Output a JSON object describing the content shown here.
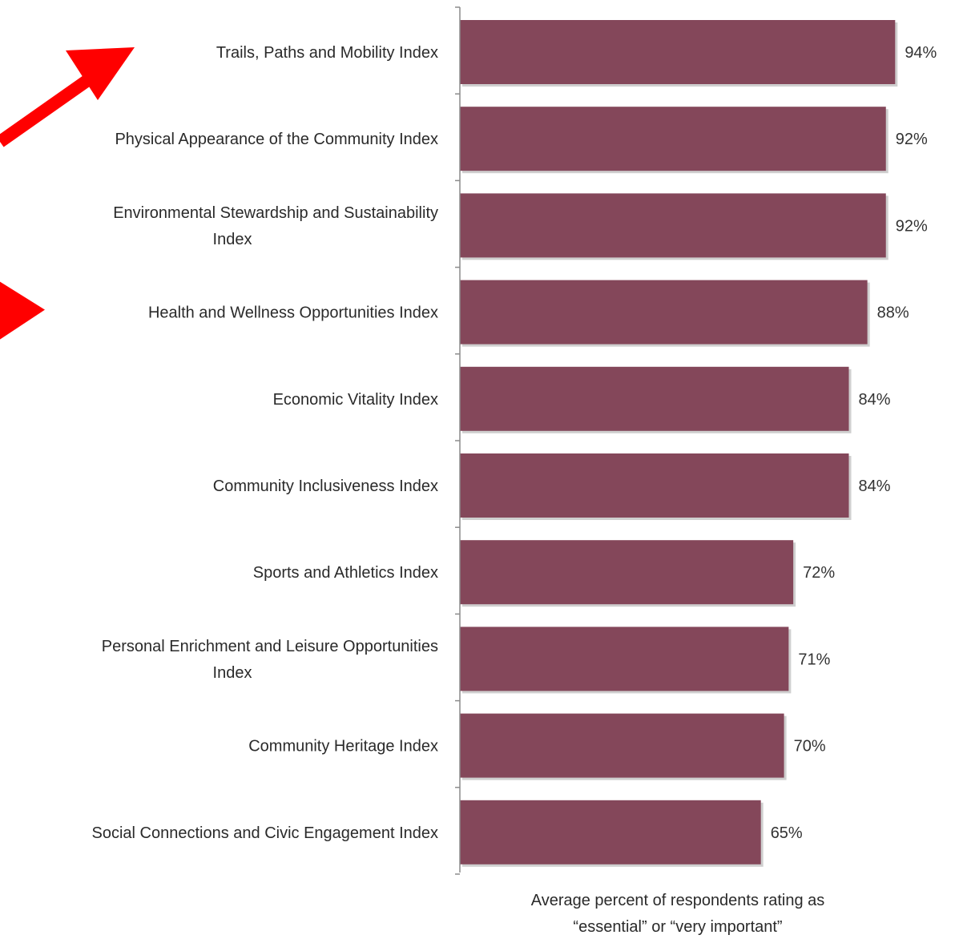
{
  "chart_data": {
    "type": "bar",
    "orientation": "horizontal",
    "categories": [
      "Trails, Paths and Mobility Index",
      "Physical Appearance of the Community Index",
      "Environmental Stewardship and Sustainability Index",
      "Health and Wellness Opportunities Index",
      "Economic Vitality Index",
      "Community Inclusiveness Index",
      "Sports and Athletics Index",
      "Personal Enrichment and Leisure Opportunities Index",
      "Community Heritage Index",
      "Social Connections and Civic Engagement Index"
    ],
    "category_lines": [
      [
        "Trails, Paths and Mobility Index"
      ],
      [
        "Physical Appearance of the Community Index"
      ],
      [
        "Environmental Stewardship and Sustainability",
        "Index"
      ],
      [
        "Health and Wellness Opportunities Index"
      ],
      [
        "Economic Vitality Index"
      ],
      [
        "Community Inclusiveness Index"
      ],
      [
        "Sports and Athletics Index"
      ],
      [
        "Personal Enrichment and Leisure Opportunities",
        "Index"
      ],
      [
        "Community Heritage Index"
      ],
      [
        "Social Connections and Civic Engagement Index"
      ]
    ],
    "values": [
      94,
      92,
      92,
      88,
      84,
      84,
      72,
      71,
      70,
      65
    ],
    "value_labels": [
      "94%",
      "92%",
      "92%",
      "88%",
      "84%",
      "84%",
      "72%",
      "71%",
      "70%",
      "65%"
    ],
    "xlabel_lines": [
      "Average percent of respondents rating as",
      "“essential” or “very important”"
    ],
    "xlim": [
      0,
      100
    ],
    "grid": false,
    "legend": "none",
    "bar_color": "#84475a",
    "annotations": [
      {
        "type": "arrow",
        "target": "Trails, Paths and Mobility Index",
        "color": "#ff0000"
      },
      {
        "type": "arrow",
        "target": "Health and Wellness Opportunities Index",
        "color": "#ff0000"
      }
    ]
  }
}
